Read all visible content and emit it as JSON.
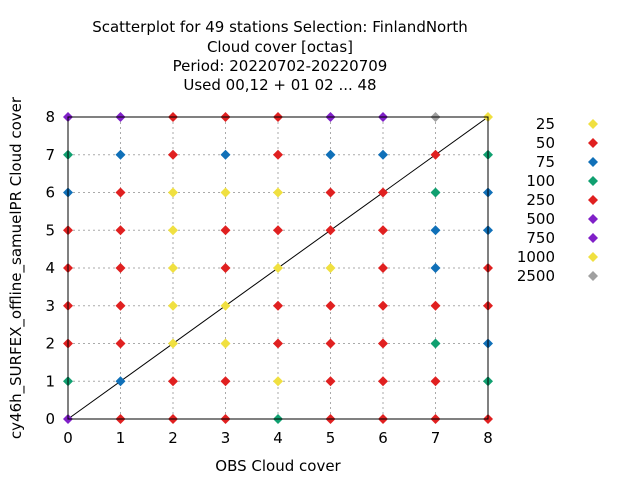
{
  "chart_data": {
    "type": "scatter",
    "title_lines": [
      "Scatterplot for   49 stations Selection: FinlandNorth",
      "Cloud cover [octas]",
      "Period: 20220702-20220709",
      "Used  00,12  + 01 02 ... 48"
    ],
    "xlabel": "OBS Cloud cover",
    "ylabel": "cy46h_SURFEX_offline_samuelPR Cloud cover",
    "xlim": [
      0,
      8
    ],
    "ylim": [
      0,
      8
    ],
    "xticks": [
      "0",
      "1",
      "2",
      "3",
      "4",
      "5",
      "6",
      "7",
      "8"
    ],
    "yticks": [
      "0",
      "1",
      "2",
      "3",
      "4",
      "5",
      "6",
      "7",
      "8"
    ],
    "grid": true,
    "diagonal_line": true,
    "legend_position": "right",
    "legend": [
      {
        "label": "25",
        "color": "#f0e040"
      },
      {
        "label": "50",
        "color": "#e02020"
      },
      {
        "label": "75",
        "color": "#1070b8"
      },
      {
        "label": "100",
        "color": "#10a070"
      },
      {
        "label": "250",
        "color": "#e02020"
      },
      {
        "label": "500",
        "color": "#8020c8"
      },
      {
        "label": "750",
        "color": "#8020c8"
      },
      {
        "label": "1000",
        "color": "#f0e040"
      },
      {
        "label": "2500",
        "color": "#a0a0a0"
      }
    ],
    "points": [
      {
        "x": 0,
        "y": 0,
        "color": "#8020c8"
      },
      {
        "x": 1,
        "y": 0,
        "color": "#e02020"
      },
      {
        "x": 2,
        "y": 0,
        "color": "#e02020"
      },
      {
        "x": 3,
        "y": 0,
        "color": "#e02020"
      },
      {
        "x": 4,
        "y": 0,
        "color": "#10a070"
      },
      {
        "x": 5,
        "y": 0,
        "color": "#e02020"
      },
      {
        "x": 6,
        "y": 0,
        "color": "#e02020"
      },
      {
        "x": 7,
        "y": 0,
        "color": "#e02020"
      },
      {
        "x": 8,
        "y": 0,
        "color": "#e02020"
      },
      {
        "x": 0,
        "y": 1,
        "color": "#10a070"
      },
      {
        "x": 1,
        "y": 1,
        "color": "#1070b8"
      },
      {
        "x": 2,
        "y": 1,
        "color": "#e02020"
      },
      {
        "x": 3,
        "y": 1,
        "color": "#e02020"
      },
      {
        "x": 4,
        "y": 1,
        "color": "#f0e040"
      },
      {
        "x": 5,
        "y": 1,
        "color": "#e02020"
      },
      {
        "x": 6,
        "y": 1,
        "color": "#e02020"
      },
      {
        "x": 7,
        "y": 1,
        "color": "#e02020"
      },
      {
        "x": 8,
        "y": 1,
        "color": "#10a070"
      },
      {
        "x": 0,
        "y": 2,
        "color": "#e02020"
      },
      {
        "x": 1,
        "y": 2,
        "color": "#e02020"
      },
      {
        "x": 2,
        "y": 2,
        "color": "#f0e040"
      },
      {
        "x": 3,
        "y": 2,
        "color": "#f0e040"
      },
      {
        "x": 4,
        "y": 2,
        "color": "#e02020"
      },
      {
        "x": 5,
        "y": 2,
        "color": "#e02020"
      },
      {
        "x": 6,
        "y": 2,
        "color": "#e02020"
      },
      {
        "x": 7,
        "y": 2,
        "color": "#10a070"
      },
      {
        "x": 8,
        "y": 2,
        "color": "#1070b8"
      },
      {
        "x": 0,
        "y": 3,
        "color": "#e02020"
      },
      {
        "x": 1,
        "y": 3,
        "color": "#e02020"
      },
      {
        "x": 2,
        "y": 3,
        "color": "#f0e040"
      },
      {
        "x": 3,
        "y": 3,
        "color": "#f0e040"
      },
      {
        "x": 4,
        "y": 3,
        "color": "#e02020"
      },
      {
        "x": 5,
        "y": 3,
        "color": "#e02020"
      },
      {
        "x": 6,
        "y": 3,
        "color": "#e02020"
      },
      {
        "x": 7,
        "y": 3,
        "color": "#e02020"
      },
      {
        "x": 8,
        "y": 3,
        "color": "#e02020"
      },
      {
        "x": 0,
        "y": 4,
        "color": "#e02020"
      },
      {
        "x": 1,
        "y": 4,
        "color": "#e02020"
      },
      {
        "x": 2,
        "y": 4,
        "color": "#f0e040"
      },
      {
        "x": 3,
        "y": 4,
        "color": "#e02020"
      },
      {
        "x": 4,
        "y": 4,
        "color": "#f0e040"
      },
      {
        "x": 5,
        "y": 4,
        "color": "#f0e040"
      },
      {
        "x": 6,
        "y": 4,
        "color": "#e02020"
      },
      {
        "x": 7,
        "y": 4,
        "color": "#1070b8"
      },
      {
        "x": 8,
        "y": 4,
        "color": "#e02020"
      },
      {
        "x": 0,
        "y": 5,
        "color": "#e02020"
      },
      {
        "x": 1,
        "y": 5,
        "color": "#e02020"
      },
      {
        "x": 2,
        "y": 5,
        "color": "#f0e040"
      },
      {
        "x": 3,
        "y": 5,
        "color": "#e02020"
      },
      {
        "x": 4,
        "y": 5,
        "color": "#e02020"
      },
      {
        "x": 5,
        "y": 5,
        "color": "#e02020"
      },
      {
        "x": 6,
        "y": 5,
        "color": "#e02020"
      },
      {
        "x": 7,
        "y": 5,
        "color": "#1070b8"
      },
      {
        "x": 8,
        "y": 5,
        "color": "#1070b8"
      },
      {
        "x": 0,
        "y": 6,
        "color": "#1070b8"
      },
      {
        "x": 1,
        "y": 6,
        "color": "#e02020"
      },
      {
        "x": 2,
        "y": 6,
        "color": "#f0e040"
      },
      {
        "x": 3,
        "y": 6,
        "color": "#f0e040"
      },
      {
        "x": 4,
        "y": 6,
        "color": "#f0e040"
      },
      {
        "x": 5,
        "y": 6,
        "color": "#e02020"
      },
      {
        "x": 6,
        "y": 6,
        "color": "#e02020"
      },
      {
        "x": 7,
        "y": 6,
        "color": "#10a070"
      },
      {
        "x": 8,
        "y": 6,
        "color": "#1070b8"
      },
      {
        "x": 0,
        "y": 7,
        "color": "#10a070"
      },
      {
        "x": 1,
        "y": 7,
        "color": "#1070b8"
      },
      {
        "x": 2,
        "y": 7,
        "color": "#e02020"
      },
      {
        "x": 3,
        "y": 7,
        "color": "#1070b8"
      },
      {
        "x": 4,
        "y": 7,
        "color": "#e02020"
      },
      {
        "x": 5,
        "y": 7,
        "color": "#1070b8"
      },
      {
        "x": 6,
        "y": 7,
        "color": "#1070b8"
      },
      {
        "x": 7,
        "y": 7,
        "color": "#e02020"
      },
      {
        "x": 8,
        "y": 7,
        "color": "#10a070"
      },
      {
        "x": 0,
        "y": 8,
        "color": "#8020c8"
      },
      {
        "x": 1,
        "y": 8,
        "color": "#8020c8"
      },
      {
        "x": 2,
        "y": 8,
        "color": "#e02020"
      },
      {
        "x": 3,
        "y": 8,
        "color": "#e02020"
      },
      {
        "x": 4,
        "y": 8,
        "color": "#e02020"
      },
      {
        "x": 5,
        "y": 8,
        "color": "#8020c8"
      },
      {
        "x": 6,
        "y": 8,
        "color": "#8020c8"
      },
      {
        "x": 7,
        "y": 8,
        "color": "#a0a0a0"
      },
      {
        "x": 8,
        "y": 8,
        "color": "#f0e040"
      }
    ]
  }
}
